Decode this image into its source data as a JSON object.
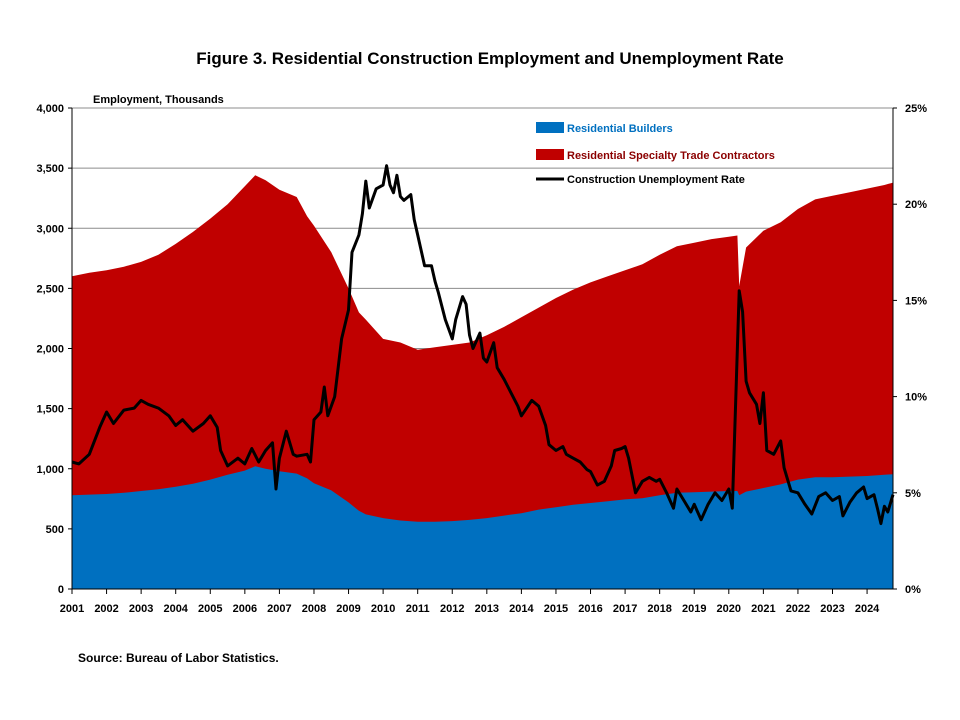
{
  "chart_data": {
    "type": "area",
    "title": "Figure 3. Residential Construction  Employment and Unemployment Rate",
    "ylabel": "Employment, Thousands",
    "source": "Source: Bureau of Labor Statistics.",
    "x_ticks": [
      "2001",
      "2002",
      "2003",
      "2004",
      "2005",
      "2006",
      "2007",
      "2008",
      "2009",
      "2010",
      "2011",
      "2012",
      "2013",
      "2014",
      "2015",
      "2016",
      "2017",
      "2018",
      "2019",
      "2020",
      "2021",
      "2022",
      "2023",
      "2024"
    ],
    "xlim": [
      2001.0,
      2024.75
    ],
    "y_left": {
      "ylim": [
        0,
        4000
      ],
      "ticks": [
        "0",
        "500",
        "1,000",
        "1,500",
        "2,000",
        "2,500",
        "3,000",
        "3,500",
        "4,000"
      ]
    },
    "y_right": {
      "ylim": [
        0,
        25
      ],
      "ticks": [
        "0%",
        "5%",
        "10%",
        "15%",
        "20%",
        "25%"
      ]
    },
    "grid": "horizontal",
    "legend_position": "top-right",
    "colors": {
      "builders": "#0070c0",
      "specialty": "#c00000",
      "unemployment": "#000000"
    },
    "series": [
      {
        "name": "Residential Builders",
        "kind": "stacked-area",
        "axis": "left",
        "points": [
          [
            2001.0,
            780
          ],
          [
            2001.5,
            785
          ],
          [
            2002.0,
            790
          ],
          [
            2002.5,
            800
          ],
          [
            2003.0,
            815
          ],
          [
            2003.5,
            830
          ],
          [
            2004.0,
            850
          ],
          [
            2004.5,
            875
          ],
          [
            2005.0,
            910
          ],
          [
            2005.5,
            950
          ],
          [
            2006.0,
            985
          ],
          [
            2006.3,
            1020
          ],
          [
            2006.6,
            1000
          ],
          [
            2007.0,
            980
          ],
          [
            2007.5,
            960
          ],
          [
            2007.8,
            920
          ],
          [
            2008.0,
            880
          ],
          [
            2008.5,
            820
          ],
          [
            2009.0,
            720
          ],
          [
            2009.3,
            650
          ],
          [
            2009.5,
            620
          ],
          [
            2010.0,
            590
          ],
          [
            2010.5,
            570
          ],
          [
            2011.0,
            560
          ],
          [
            2011.5,
            560
          ],
          [
            2012.0,
            565
          ],
          [
            2012.5,
            575
          ],
          [
            2013.0,
            590
          ],
          [
            2013.5,
            610
          ],
          [
            2014.0,
            630
          ],
          [
            2014.5,
            660
          ],
          [
            2015.0,
            680
          ],
          [
            2015.5,
            700
          ],
          [
            2016.0,
            715
          ],
          [
            2016.5,
            730
          ],
          [
            2017.0,
            745
          ],
          [
            2017.5,
            755
          ],
          [
            2018.0,
            780
          ],
          [
            2018.5,
            800
          ],
          [
            2019.0,
            805
          ],
          [
            2019.5,
            810
          ],
          [
            2020.0,
            815
          ],
          [
            2020.25,
            815
          ],
          [
            2020.3,
            780
          ],
          [
            2020.5,
            810
          ],
          [
            2021.0,
            840
          ],
          [
            2021.5,
            870
          ],
          [
            2022.0,
            910
          ],
          [
            2022.5,
            930
          ],
          [
            2023.0,
            930
          ],
          [
            2023.5,
            935
          ],
          [
            2024.0,
            940
          ],
          [
            2024.5,
            950
          ],
          [
            2024.75,
            955
          ]
        ]
      },
      {
        "name": "Residential Specialty Trade Contractors",
        "kind": "stacked-area",
        "axis": "left",
        "stack_total_points": [
          [
            2001.0,
            2600
          ],
          [
            2001.5,
            2630
          ],
          [
            2002.0,
            2650
          ],
          [
            2002.5,
            2680
          ],
          [
            2003.0,
            2720
          ],
          [
            2003.5,
            2780
          ],
          [
            2004.0,
            2870
          ],
          [
            2004.5,
            2970
          ],
          [
            2005.0,
            3080
          ],
          [
            2005.5,
            3200
          ],
          [
            2006.0,
            3350
          ],
          [
            2006.3,
            3440
          ],
          [
            2006.6,
            3400
          ],
          [
            2007.0,
            3320
          ],
          [
            2007.5,
            3260
          ],
          [
            2007.8,
            3100
          ],
          [
            2008.0,
            3020
          ],
          [
            2008.5,
            2800
          ],
          [
            2009.0,
            2500
          ],
          [
            2009.3,
            2300
          ],
          [
            2009.5,
            2240
          ],
          [
            2010.0,
            2080
          ],
          [
            2010.5,
            2050
          ],
          [
            2011.0,
            1990
          ],
          [
            2011.5,
            2010
          ],
          [
            2012.0,
            2030
          ],
          [
            2012.5,
            2050
          ],
          [
            2013.0,
            2110
          ],
          [
            2013.5,
            2180
          ],
          [
            2014.0,
            2260
          ],
          [
            2014.5,
            2340
          ],
          [
            2015.0,
            2420
          ],
          [
            2015.5,
            2490
          ],
          [
            2016.0,
            2550
          ],
          [
            2016.5,
            2600
          ],
          [
            2017.0,
            2650
          ],
          [
            2017.5,
            2700
          ],
          [
            2018.0,
            2780
          ],
          [
            2018.5,
            2850
          ],
          [
            2019.0,
            2880
          ],
          [
            2019.5,
            2910
          ],
          [
            2020.0,
            2930
          ],
          [
            2020.25,
            2940
          ],
          [
            2020.3,
            2520
          ],
          [
            2020.5,
            2840
          ],
          [
            2021.0,
            2980
          ],
          [
            2021.5,
            3050
          ],
          [
            2022.0,
            3160
          ],
          [
            2022.5,
            3240
          ],
          [
            2023.0,
            3270
          ],
          [
            2023.5,
            3300
          ],
          [
            2024.0,
            3330
          ],
          [
            2024.5,
            3360
          ],
          [
            2024.75,
            3380
          ]
        ]
      },
      {
        "name": "Construction Unemployment Rate",
        "kind": "line",
        "axis": "right",
        "unit": "%",
        "points": [
          [
            2001.0,
            6.6
          ],
          [
            2001.2,
            6.5
          ],
          [
            2001.5,
            7.0
          ],
          [
            2001.8,
            8.4
          ],
          [
            2002.0,
            9.2
          ],
          [
            2002.2,
            8.6
          ],
          [
            2002.5,
            9.3
          ],
          [
            2002.8,
            9.4
          ],
          [
            2003.0,
            9.8
          ],
          [
            2003.2,
            9.6
          ],
          [
            2003.5,
            9.4
          ],
          [
            2003.8,
            9.0
          ],
          [
            2004.0,
            8.5
          ],
          [
            2004.2,
            8.8
          ],
          [
            2004.5,
            8.2
          ],
          [
            2004.8,
            8.6
          ],
          [
            2005.0,
            9.0
          ],
          [
            2005.2,
            8.4
          ],
          [
            2005.3,
            7.2
          ],
          [
            2005.5,
            6.4
          ],
          [
            2005.8,
            6.8
          ],
          [
            2006.0,
            6.5
          ],
          [
            2006.2,
            7.3
          ],
          [
            2006.4,
            6.6
          ],
          [
            2006.6,
            7.2
          ],
          [
            2006.8,
            7.6
          ],
          [
            2006.9,
            5.2
          ],
          [
            2007.0,
            6.8
          ],
          [
            2007.2,
            8.2
          ],
          [
            2007.4,
            7.0
          ],
          [
            2007.5,
            6.9
          ],
          [
            2007.8,
            7.0
          ],
          [
            2007.9,
            6.6
          ],
          [
            2008.0,
            8.8
          ],
          [
            2008.2,
            9.2
          ],
          [
            2008.3,
            10.5
          ],
          [
            2008.4,
            9.0
          ],
          [
            2008.6,
            10.0
          ],
          [
            2008.8,
            13.0
          ],
          [
            2009.0,
            14.5
          ],
          [
            2009.1,
            17.5
          ],
          [
            2009.3,
            18.4
          ],
          [
            2009.4,
            19.5
          ],
          [
            2009.5,
            21.2
          ],
          [
            2009.6,
            19.8
          ],
          [
            2009.8,
            20.8
          ],
          [
            2010.0,
            21.0
          ],
          [
            2010.1,
            22.0
          ],
          [
            2010.2,
            21.0
          ],
          [
            2010.3,
            20.6
          ],
          [
            2010.4,
            21.5
          ],
          [
            2010.5,
            20.4
          ],
          [
            2010.6,
            20.2
          ],
          [
            2010.8,
            20.5
          ],
          [
            2010.9,
            19.2
          ],
          [
            2011.0,
            18.4
          ],
          [
            2011.2,
            16.8
          ],
          [
            2011.4,
            16.8
          ],
          [
            2011.5,
            16.0
          ],
          [
            2011.6,
            15.4
          ],
          [
            2011.8,
            14.0
          ],
          [
            2012.0,
            13.0
          ],
          [
            2012.1,
            14.0
          ],
          [
            2012.3,
            15.2
          ],
          [
            2012.4,
            14.8
          ],
          [
            2012.5,
            13.2
          ],
          [
            2012.6,
            12.5
          ],
          [
            2012.8,
            13.3
          ],
          [
            2012.9,
            12.0
          ],
          [
            2013.0,
            11.8
          ],
          [
            2013.2,
            12.8
          ],
          [
            2013.3,
            11.5
          ],
          [
            2013.5,
            10.9
          ],
          [
            2013.7,
            10.2
          ],
          [
            2013.9,
            9.5
          ],
          [
            2014.0,
            9.0
          ],
          [
            2014.3,
            9.8
          ],
          [
            2014.5,
            9.5
          ],
          [
            2014.7,
            8.5
          ],
          [
            2014.8,
            7.5
          ],
          [
            2015.0,
            7.2
          ],
          [
            2015.2,
            7.4
          ],
          [
            2015.3,
            7.0
          ],
          [
            2015.5,
            6.8
          ],
          [
            2015.7,
            6.6
          ],
          [
            2015.9,
            6.2
          ],
          [
            2016.0,
            6.1
          ],
          [
            2016.2,
            5.4
          ],
          [
            2016.4,
            5.6
          ],
          [
            2016.6,
            6.4
          ],
          [
            2016.7,
            7.2
          ],
          [
            2016.9,
            7.3
          ],
          [
            2017.0,
            7.4
          ],
          [
            2017.1,
            6.8
          ],
          [
            2017.3,
            5.0
          ],
          [
            2017.5,
            5.6
          ],
          [
            2017.7,
            5.8
          ],
          [
            2017.9,
            5.6
          ],
          [
            2018.0,
            5.7
          ],
          [
            2018.2,
            5.0
          ],
          [
            2018.4,
            4.2
          ],
          [
            2018.5,
            5.2
          ],
          [
            2018.7,
            4.6
          ],
          [
            2018.9,
            4.0
          ],
          [
            2019.0,
            4.4
          ],
          [
            2019.2,
            3.6
          ],
          [
            2019.4,
            4.4
          ],
          [
            2019.6,
            5.0
          ],
          [
            2019.8,
            4.6
          ],
          [
            2020.0,
            5.2
          ],
          [
            2020.1,
            4.2
          ],
          [
            2020.3,
            15.5
          ],
          [
            2020.4,
            14.4
          ],
          [
            2020.5,
            10.8
          ],
          [
            2020.6,
            10.2
          ],
          [
            2020.8,
            9.6
          ],
          [
            2020.9,
            8.6
          ],
          [
            2021.0,
            10.2
          ],
          [
            2021.1,
            7.2
          ],
          [
            2021.3,
            7.0
          ],
          [
            2021.5,
            7.7
          ],
          [
            2021.6,
            6.3
          ],
          [
            2021.8,
            5.1
          ],
          [
            2022.0,
            5.0
          ],
          [
            2022.2,
            4.4
          ],
          [
            2022.4,
            3.9
          ],
          [
            2022.6,
            4.8
          ],
          [
            2022.8,
            5.0
          ],
          [
            2023.0,
            4.6
          ],
          [
            2023.2,
            4.8
          ],
          [
            2023.3,
            3.8
          ],
          [
            2023.5,
            4.5
          ],
          [
            2023.7,
            5.0
          ],
          [
            2023.9,
            5.3
          ],
          [
            2024.0,
            4.7
          ],
          [
            2024.2,
            4.9
          ],
          [
            2024.3,
            4.2
          ],
          [
            2024.4,
            3.4
          ],
          [
            2024.5,
            4.3
          ],
          [
            2024.6,
            4.0
          ],
          [
            2024.75,
            4.9
          ]
        ]
      }
    ]
  }
}
